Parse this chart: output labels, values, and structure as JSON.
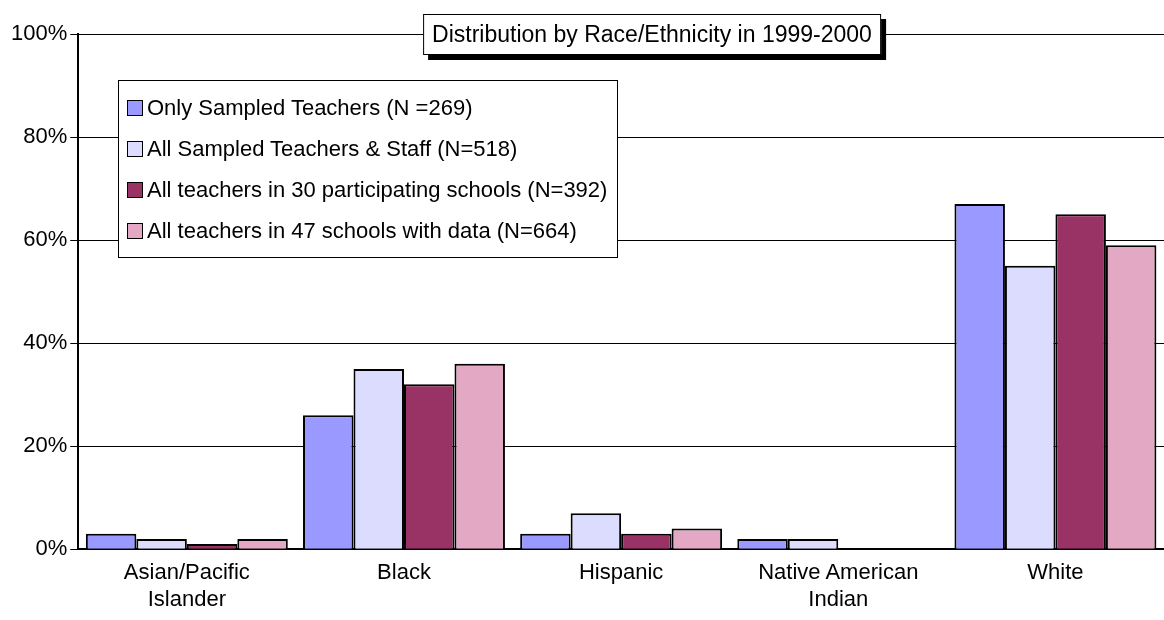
{
  "chart_data": {
    "type": "bar",
    "title": "Distribution by Race/Ethnicity in 1999-2000",
    "categories": [
      "Asian/Pacific Islander",
      "Black",
      "Hispanic",
      "Native American Indian",
      "White"
    ],
    "series": [
      {
        "name": "Only Sampled Teachers (N =269)",
        "color": "#9999ff",
        "values": [
          3,
          26,
          3,
          2,
          67
        ]
      },
      {
        "name": "All Sampled Teachers & Staff (N=518)",
        "color": "#dcdcff",
        "values": [
          2,
          35,
          7,
          2,
          55
        ]
      },
      {
        "name": "All teachers in 30 participating schools (N=392)",
        "color": "#993366",
        "values": [
          1,
          32,
          3,
          0,
          65
        ]
      },
      {
        "name": "All teachers in 47 schools with data (N=664)",
        "color": "#e3a8c4",
        "values": [
          2,
          36,
          4,
          0,
          59
        ]
      }
    ],
    "ylim": [
      0,
      100
    ],
    "yticks": [
      {
        "value": 0,
        "label": "0%"
      },
      {
        "value": 20,
        "label": "20%"
      },
      {
        "value": 40,
        "label": "40%"
      },
      {
        "value": 60,
        "label": "60%"
      },
      {
        "value": 80,
        "label": "80%"
      },
      {
        "value": 100,
        "label": "100%"
      }
    ],
    "grid": "y",
    "legend": "top left"
  }
}
